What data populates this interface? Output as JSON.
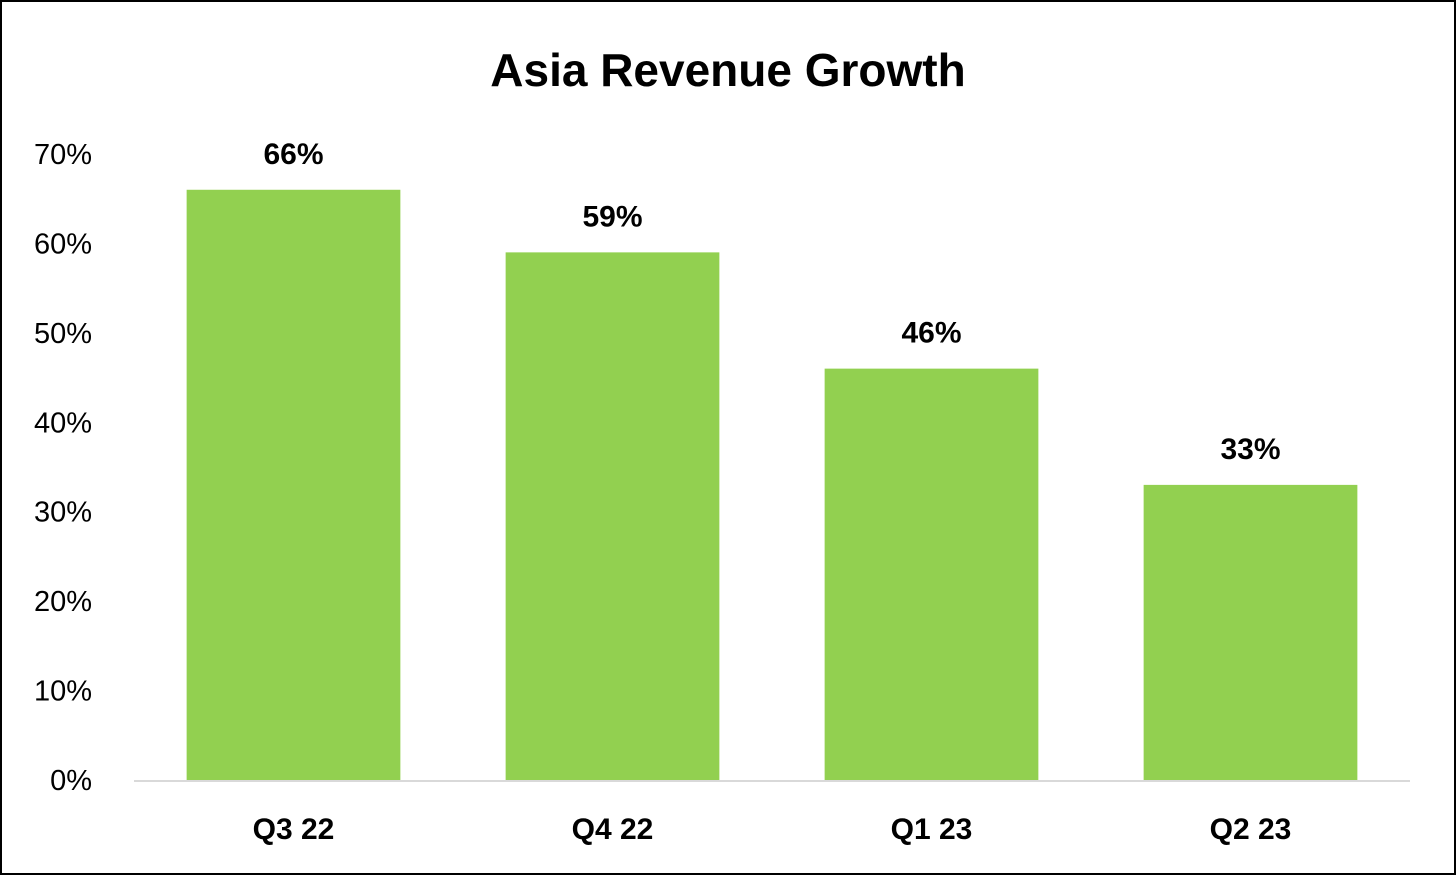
{
  "chart_data": {
    "type": "bar",
    "title": "Asia Revenue Growth",
    "xlabel": "",
    "ylabel": "",
    "categories": [
      "Q3 22",
      "Q4 22",
      "Q1 23",
      "Q2 23"
    ],
    "values": [
      66,
      59,
      46,
      33
    ],
    "data_labels": [
      "66%",
      "59%",
      "46%",
      "33%"
    ],
    "yticks": [
      0,
      10,
      20,
      30,
      40,
      50,
      60,
      70
    ],
    "ytick_labels": [
      "0%",
      "10%",
      "20%",
      "30%",
      "40%",
      "50%",
      "60%",
      "70%"
    ],
    "ylim": [
      0,
      70
    ],
    "grid": false,
    "legend": "none",
    "bar_color": "#92d050",
    "axis_color": "#d9d9d9"
  }
}
